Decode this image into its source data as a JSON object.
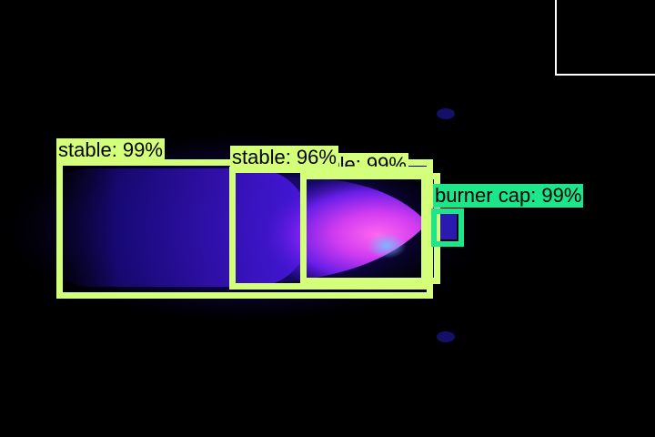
{
  "colors": {
    "background": "#000000",
    "stable_box": "#d4ff7a",
    "burner_cap_box": "#1de58a",
    "flame_core": "#ff55ee",
    "flame_outer": "#3a14d8",
    "inset_border": "#ffffff"
  },
  "detections": [
    {
      "label": "stable: 99%",
      "class": "stable"
    },
    {
      "label": "stable: 96%",
      "class": "stable"
    },
    {
      "label": "stable: 99%",
      "class": "stable"
    },
    {
      "label": "burner cap: 99%",
      "class": "burner-cap"
    }
  ]
}
